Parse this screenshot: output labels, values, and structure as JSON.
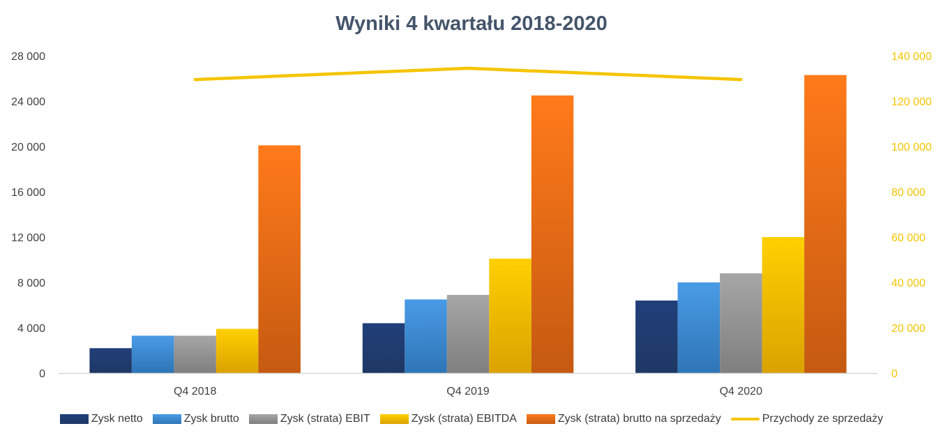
{
  "chart_data": {
    "type": "bar",
    "title": "Wyniki 4 kwartału 2018-2020",
    "categories": [
      "Q4 2018",
      "Q4 2019",
      "Q4 2020"
    ],
    "y_left": {
      "ylim": [
        0,
        28000
      ],
      "ticks": [
        0,
        4000,
        8000,
        12000,
        16000,
        20000,
        24000,
        28000
      ],
      "tick_labels": [
        "0",
        "4 000",
        "8 000",
        "12 000",
        "16 000",
        "20 000",
        "24 000",
        "28 000"
      ]
    },
    "y_right": {
      "ylim": [
        0,
        140000
      ],
      "ticks": [
        0,
        20000,
        40000,
        60000,
        80000,
        100000,
        120000,
        140000
      ],
      "tick_labels": [
        "0",
        "20 000",
        "40 000",
        "60 000",
        "80 000",
        "100 000",
        "120 000",
        "140 000"
      ],
      "color": "#f5c400"
    },
    "series": [
      {
        "name": "Zysk netto",
        "type": "bar",
        "axis": "left",
        "values": [
          2200,
          4400,
          6400
        ],
        "color_top": "#203f7a",
        "color_bottom": "#1f3864"
      },
      {
        "name": "Zysk brutto",
        "type": "bar",
        "axis": "left",
        "values": [
          3300,
          6500,
          8000
        ],
        "color_top": "#4a9be6",
        "color_bottom": "#2e75b6"
      },
      {
        "name": "Zysk (strata) EBIT",
        "type": "bar",
        "axis": "left",
        "values": [
          3300,
          6900,
          8800
        ],
        "color_top": "#a6a6a6",
        "color_bottom": "#7f7f7f"
      },
      {
        "name": "Zysk (strata) EBITDA",
        "type": "bar",
        "axis": "left",
        "values": [
          3900,
          10100,
          12000
        ],
        "color_top": "#ffd000",
        "color_bottom": "#dba200"
      },
      {
        "name": "Zysk (strata) brutto na sprzedaży",
        "type": "bar",
        "axis": "left",
        "values": [
          20100,
          24500,
          26300
        ],
        "color_top": "#ff7a1a",
        "color_bottom": "#c55a11"
      },
      {
        "name": "Przychody ze sprzedaży",
        "type": "line",
        "axis": "right",
        "values": [
          129500,
          134500,
          129500
        ],
        "color": "#f5c400"
      }
    ],
    "grid": false,
    "legend_position": "bottom"
  }
}
